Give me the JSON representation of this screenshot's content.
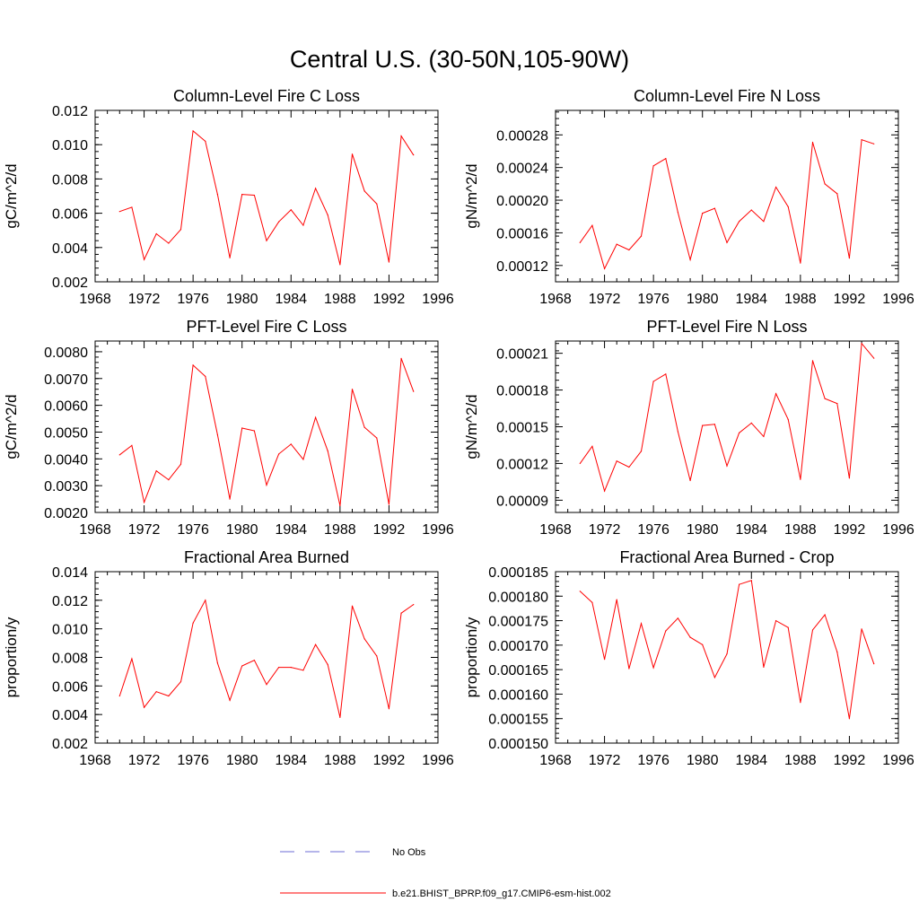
{
  "figure": {
    "title": "Central U.S. (30-50N,105-90W)"
  },
  "colors": {
    "model_line": "#ff0000",
    "obs_line": "#6b6bd6",
    "axis": "#000000"
  },
  "legend": {
    "entries": [
      {
        "label": "No Obs",
        "style": "dashed",
        "color": "#6b6bd6"
      },
      {
        "label": "b.e21.BHIST_BPRP.f09_g17.CMIP6-esm-hist.002",
        "style": "solid",
        "color": "#ff0000"
      }
    ]
  },
  "chart_data": [
    {
      "type": "line",
      "title": "Column-Level Fire C Loss",
      "xlabel": "",
      "ylabel": "gC/m^2/d",
      "xlim": [
        1968,
        1996
      ],
      "ylim": [
        0.002,
        0.012
      ],
      "xticks": [
        1968,
        1972,
        1976,
        1980,
        1984,
        1988,
        1992,
        1996
      ],
      "xtick_labels": [
        "1968",
        "1972",
        "1976",
        "1980",
        "1984",
        "1988",
        "1992",
        "1996"
      ],
      "yticks": [
        0.002,
        0.004,
        0.006,
        0.008,
        0.01,
        0.012
      ],
      "ytick_labels": [
        "0.002",
        "0.004",
        "0.006",
        "0.008",
        "0.010",
        "0.012"
      ],
      "x": [
        1970,
        1971,
        1972,
        1973,
        1974,
        1975,
        1976,
        1977,
        1978,
        1979,
        1980,
        1981,
        1982,
        1983,
        1984,
        1985,
        1986,
        1987,
        1988,
        1989,
        1990,
        1991,
        1992,
        1993,
        1994
      ],
      "series": [
        {
          "name": "b.e21.BHIST_BPRP.f09_g17.CMIP6-esm-hist.002",
          "values": [
            0.0061,
            0.00635,
            0.0033,
            0.0048,
            0.00425,
            0.00505,
            0.0108,
            0.0102,
            0.0071,
            0.0034,
            0.0071,
            0.00705,
            0.0044,
            0.0055,
            0.0062,
            0.0053,
            0.00745,
            0.0059,
            0.003,
            0.00945,
            0.0073,
            0.00655,
            0.00315,
            0.0105,
            0.0094
          ]
        }
      ]
    },
    {
      "type": "line",
      "title": "Column-Level Fire N Loss",
      "xlabel": "",
      "ylabel": "gN/m^2/d",
      "xlim": [
        1968,
        1996
      ],
      "ylim": [
        0.0001,
        0.00031
      ],
      "xticks": [
        1968,
        1972,
        1976,
        1980,
        1984,
        1988,
        1992,
        1996
      ],
      "xtick_labels": [
        "1968",
        "1972",
        "1976",
        "1980",
        "1984",
        "1988",
        "1992",
        "1996"
      ],
      "yticks": [
        0.00012,
        0.00016,
        0.0002,
        0.00024,
        0.00028
      ],
      "ytick_labels": [
        "0.00012",
        "0.00016",
        "0.00020",
        "0.00024",
        "0.00028"
      ],
      "x": [
        1970,
        1971,
        1972,
        1973,
        1974,
        1975,
        1976,
        1977,
        1978,
        1979,
        1980,
        1981,
        1982,
        1983,
        1984,
        1985,
        1986,
        1987,
        1988,
        1989,
        1990,
        1991,
        1992,
        1993,
        1994
      ],
      "series": [
        {
          "name": "b.e21.BHIST_BPRP.f09_g17.CMIP6-esm-hist.002",
          "values": [
            0.000148,
            0.000169,
            0.000116,
            0.000146,
            0.000139,
            0.000156,
            0.000242,
            0.000251,
            0.000185,
            0.000127,
            0.000184,
            0.00019,
            0.000148,
            0.000174,
            0.000188,
            0.000174,
            0.000216,
            0.000192,
            0.000123,
            0.000271,
            0.00022,
            0.000208,
            0.000129,
            0.000274,
            0.000269
          ]
        }
      ]
    },
    {
      "type": "line",
      "title": "PFT-Level Fire C Loss",
      "xlabel": "",
      "ylabel": "gC/m^2/d",
      "xlim": [
        1968,
        1996
      ],
      "ylim": [
        0.002,
        0.0084
      ],
      "xticks": [
        1968,
        1972,
        1976,
        1980,
        1984,
        1988,
        1992,
        1996
      ],
      "xtick_labels": [
        "1968",
        "1972",
        "1976",
        "1980",
        "1984",
        "1988",
        "1992",
        "1996"
      ],
      "yticks": [
        0.002,
        0.003,
        0.004,
        0.005,
        0.006,
        0.007,
        0.008
      ],
      "ytick_labels": [
        "0.0020",
        "0.0030",
        "0.0040",
        "0.0050",
        "0.0060",
        "0.0070",
        "0.0080"
      ],
      "x": [
        1970,
        1971,
        1972,
        1973,
        1974,
        1975,
        1976,
        1977,
        1978,
        1979,
        1980,
        1981,
        1982,
        1983,
        1984,
        1985,
        1986,
        1987,
        1988,
        1989,
        1990,
        1991,
        1992,
        1993,
        1994
      ],
      "series": [
        {
          "name": "b.e21.BHIST_BPRP.f09_g17.CMIP6-esm-hist.002",
          "values": [
            0.00415,
            0.0045,
            0.00238,
            0.00355,
            0.00322,
            0.0038,
            0.0075,
            0.00708,
            0.0049,
            0.0025,
            0.00515,
            0.00505,
            0.00302,
            0.00418,
            0.00455,
            0.00398,
            0.00555,
            0.0043,
            0.00225,
            0.0066,
            0.00518,
            0.00478,
            0.0023,
            0.00775,
            0.00652
          ]
        }
      ]
    },
    {
      "type": "line",
      "title": "PFT-Level Fire N Loss",
      "xlabel": "",
      "ylabel": "gN/m^2/d",
      "xlim": [
        1968,
        1996
      ],
      "ylim": [
        8e-05,
        0.00022
      ],
      "xticks": [
        1968,
        1972,
        1976,
        1980,
        1984,
        1988,
        1992,
        1996
      ],
      "xtick_labels": [
        "1968",
        "1972",
        "1976",
        "1980",
        "1984",
        "1988",
        "1992",
        "1996"
      ],
      "yticks": [
        9e-05,
        0.00012,
        0.00015,
        0.00018,
        0.00021
      ],
      "ytick_labels": [
        "0.00009",
        "0.00012",
        "0.00015",
        "0.00018",
        "0.00021"
      ],
      "x": [
        1970,
        1971,
        1972,
        1973,
        1974,
        1975,
        1976,
        1977,
        1978,
        1979,
        1980,
        1981,
        1982,
        1983,
        1984,
        1985,
        1986,
        1987,
        1988,
        1989,
        1990,
        1991,
        1992,
        1993,
        1994
      ],
      "series": [
        {
          "name": "b.e21.BHIST_BPRP.f09_g17.CMIP6-esm-hist.002",
          "values": [
            0.00012,
            0.000134,
            9.75e-05,
            0.000122,
            0.000117,
            0.00013,
            0.000187,
            0.000193,
            0.000146,
            0.000106,
            0.000151,
            0.000152,
            0.000118,
            0.000145,
            0.000153,
            0.000142,
            0.000177,
            0.000156,
            0.000107,
            0.000204,
            0.000173,
            0.000169,
            0.000108,
            0.000218,
            0.000206
          ]
        }
      ]
    },
    {
      "type": "line",
      "title": "Fractional Area Burned",
      "xlabel": "",
      "ylabel": "proportion/y",
      "xlim": [
        1968,
        1996
      ],
      "ylim": [
        0.002,
        0.014
      ],
      "xticks": [
        1968,
        1972,
        1976,
        1980,
        1984,
        1988,
        1992,
        1996
      ],
      "xtick_labels": [
        "1968",
        "1972",
        "1976",
        "1980",
        "1984",
        "1988",
        "1992",
        "1996"
      ],
      "yticks": [
        0.002,
        0.004,
        0.006,
        0.008,
        0.01,
        0.012,
        0.014
      ],
      "ytick_labels": [
        "0.002",
        "0.004",
        "0.006",
        "0.008",
        "0.010",
        "0.012",
        "0.014"
      ],
      "x": [
        1970,
        1971,
        1972,
        1973,
        1974,
        1975,
        1976,
        1977,
        1978,
        1979,
        1980,
        1981,
        1982,
        1983,
        1984,
        1985,
        1986,
        1987,
        1988,
        1989,
        1990,
        1991,
        1992,
        1993,
        1994
      ],
      "series": [
        {
          "name": "b.e21.BHIST_BPRP.f09_g17.CMIP6-esm-hist.002",
          "values": [
            0.0053,
            0.0079,
            0.0045,
            0.0056,
            0.0053,
            0.0063,
            0.0104,
            0.012,
            0.0076,
            0.005,
            0.0074,
            0.0078,
            0.0061,
            0.0073,
            0.0073,
            0.0071,
            0.0089,
            0.0075,
            0.0038,
            0.0116,
            0.0093,
            0.0081,
            0.0044,
            0.0111,
            0.0117
          ]
        }
      ]
    },
    {
      "type": "line",
      "title": "Fractional Area Burned - Crop",
      "xlabel": "",
      "ylabel": "proportion/y",
      "xlim": [
        1968,
        1996
      ],
      "ylim": [
        0.00015,
        0.000185
      ],
      "xticks": [
        1968,
        1972,
        1976,
        1980,
        1984,
        1988,
        1992,
        1996
      ],
      "xtick_labels": [
        "1968",
        "1972",
        "1976",
        "1980",
        "1984",
        "1988",
        "1992",
        "1996"
      ],
      "yticks": [
        0.00015,
        0.000155,
        0.00016,
        0.000165,
        0.00017,
        0.000175,
        0.00018,
        0.000185
      ],
      "ytick_labels": [
        "0.000150",
        "0.000155",
        "0.000160",
        "0.000165",
        "0.000170",
        "0.000175",
        "0.000180",
        "0.000185"
      ],
      "x": [
        1970,
        1971,
        1972,
        1973,
        1974,
        1975,
        1976,
        1977,
        1978,
        1979,
        1980,
        1981,
        1982,
        1983,
        1984,
        1985,
        1986,
        1987,
        1988,
        1989,
        1990,
        1991,
        1992,
        1993,
        1994
      ],
      "series": [
        {
          "name": "b.e21.BHIST_BPRP.f09_g17.CMIP6-esm-hist.002",
          "values": [
            0.000181,
            0.0001787,
            0.0001671,
            0.0001793,
            0.0001652,
            0.0001744,
            0.0001654,
            0.0001729,
            0.0001755,
            0.0001716,
            0.0001701,
            0.0001634,
            0.0001682,
            0.0001824,
            0.0001832,
            0.0001655,
            0.000175,
            0.0001736,
            0.0001583,
            0.0001731,
            0.0001762,
            0.0001686,
            0.000155,
            0.0001733,
            0.0001662
          ]
        }
      ]
    }
  ]
}
